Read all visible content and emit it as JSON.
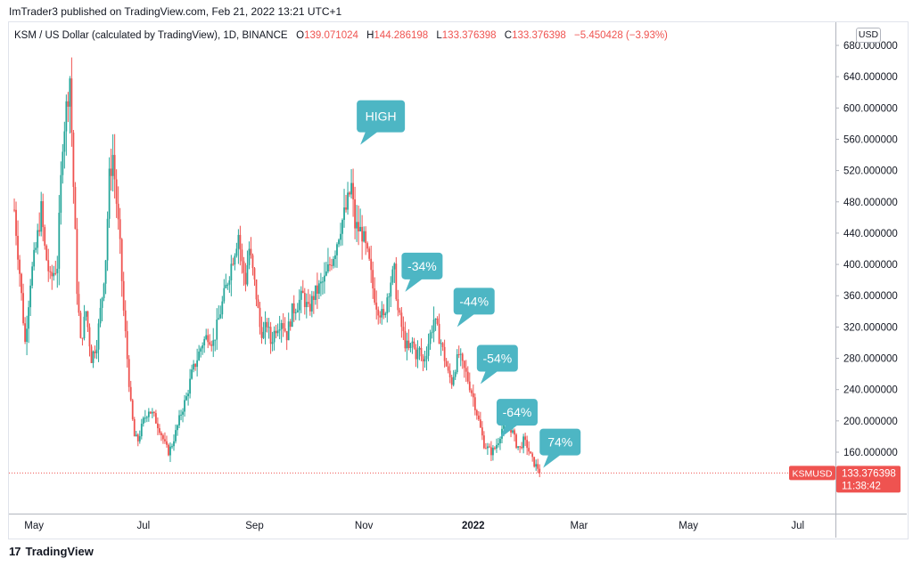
{
  "header": {
    "published_line": "ImTrader3 published on TradingView.com, Feb 21, 2022 13:21 UTC+1"
  },
  "legend": {
    "symbol_desc": "KSM / US Dollar (calculated by TradingView), 1D, BINANCE",
    "open_label": "O",
    "open": "139.071024",
    "high_label": "H",
    "high": "144.286198",
    "low_label": "L",
    "low": "133.376398",
    "close_label": "C",
    "close": "133.376398",
    "change": "−5.450428 (−3.93%)"
  },
  "currency_button": "USD",
  "price_tag": {
    "symbol": "KSMUSD",
    "price": "133.376398",
    "countdown": "11:38:42"
  },
  "footer": {
    "logo_text": "TradingView",
    "logo_mark": "17"
  },
  "colors": {
    "up": "#26a69a",
    "down": "#ef5350",
    "callout": "#4db6c4",
    "axis_text": "#131722"
  },
  "chart_data": {
    "type": "candlestick",
    "ylim": [
      90,
      700
    ],
    "y_ticks": [
      160,
      200,
      240,
      280,
      320,
      360,
      400,
      440,
      480,
      520,
      560,
      600,
      640,
      680
    ],
    "y_tick_labels": [
      "160.000000",
      "200.000000",
      "240.000000",
      "280.000000",
      "320.000000",
      "360.000000",
      "400.000000",
      "440.000000",
      "480.000000",
      "520.000000",
      "560.000000",
      "600.000000",
      "640.000000",
      "680.000000"
    ],
    "x_labels": [
      {
        "label": "May",
        "day": 11
      },
      {
        "label": "Jul",
        "day": 72
      },
      {
        "label": "Sep",
        "day": 134
      },
      {
        "label": "Nov",
        "day": 195
      },
      {
        "label": "2022",
        "day": 256
      },
      {
        "label": "Mar",
        "day": 315
      },
      {
        "label": "May",
        "day": 376
      },
      {
        "label": "Jul",
        "day": 437
      }
    ],
    "x_range_days": [
      -3,
      458
    ],
    "last_price": 133.376398,
    "price_path": [
      [
        0,
        470
      ],
      [
        3,
        390
      ],
      [
        6,
        300
      ],
      [
        9,
        380
      ],
      [
        12,
        420
      ],
      [
        15,
        470
      ],
      [
        17,
        420
      ],
      [
        20,
        380
      ],
      [
        24,
        400
      ],
      [
        27,
        560
      ],
      [
        29,
        600
      ],
      [
        31,
        640
      ],
      [
        33,
        500
      ],
      [
        35,
        370
      ],
      [
        37,
        300
      ],
      [
        40,
        340
      ],
      [
        43,
        280
      ],
      [
        46,
        300
      ],
      [
        49,
        360
      ],
      [
        51,
        410
      ],
      [
        53,
        510
      ],
      [
        55,
        540
      ],
      [
        57,
        480
      ],
      [
        59,
        420
      ],
      [
        61,
        340
      ],
      [
        63,
        280
      ],
      [
        65,
        220
      ],
      [
        67,
        180
      ],
      [
        69,
        175
      ],
      [
        72,
        200
      ],
      [
        75,
        215
      ],
      [
        78,
        205
      ],
      [
        81,
        190
      ],
      [
        84,
        170
      ],
      [
        86,
        160
      ],
      [
        88,
        170
      ],
      [
        90,
        185
      ],
      [
        93,
        210
      ],
      [
        96,
        230
      ],
      [
        99,
        260
      ],
      [
        102,
        280
      ],
      [
        105,
        300
      ],
      [
        108,
        310
      ],
      [
        111,
        300
      ],
      [
        114,
        330
      ],
      [
        117,
        360
      ],
      [
        120,
        390
      ],
      [
        123,
        420
      ],
      [
        125,
        440
      ],
      [
        127,
        400
      ],
      [
        129,
        380
      ],
      [
        131,
        420
      ],
      [
        133,
        390
      ],
      [
        135,
        360
      ],
      [
        137,
        320
      ],
      [
        139,
        310
      ],
      [
        141,
        325
      ],
      [
        143,
        300
      ],
      [
        146,
        320
      ],
      [
        149,
        330
      ],
      [
        152,
        310
      ],
      [
        155,
        340
      ],
      [
        158,
        350
      ],
      [
        161,
        360
      ],
      [
        164,
        340
      ],
      [
        167,
        360
      ],
      [
        170,
        370
      ],
      [
        173,
        380
      ],
      [
        176,
        400
      ],
      [
        179,
        420
      ],
      [
        182,
        450
      ],
      [
        185,
        470
      ],
      [
        188,
        500
      ],
      [
        190,
        450
      ],
      [
        192,
        445
      ],
      [
        194,
        440
      ],
      [
        196,
        420
      ],
      [
        198,
        400
      ],
      [
        200,
        370
      ],
      [
        202,
        350
      ],
      [
        204,
        340
      ],
      [
        206,
        330
      ],
      [
        208,
        360
      ],
      [
        210,
        380
      ],
      [
        212,
        390
      ],
      [
        214,
        340
      ],
      [
        216,
        320
      ],
      [
        218,
        300
      ],
      [
        220,
        290
      ],
      [
        222,
        300
      ],
      [
        224,
        285
      ],
      [
        226,
        290
      ],
      [
        228,
        275
      ],
      [
        230,
        290
      ],
      [
        232,
        310
      ],
      [
        234,
        330
      ],
      [
        236,
        315
      ],
      [
        238,
        300
      ],
      [
        240,
        280
      ],
      [
        242,
        260
      ],
      [
        244,
        250
      ],
      [
        246,
        270
      ],
      [
        248,
        285
      ],
      [
        250,
        270
      ],
      [
        252,
        260
      ],
      [
        254,
        245
      ],
      [
        256,
        230
      ],
      [
        258,
        210
      ],
      [
        260,
        190
      ],
      [
        262,
        170
      ],
      [
        264,
        165
      ],
      [
        266,
        160
      ],
      [
        268,
        165
      ],
      [
        270,
        175
      ],
      [
        272,
        190
      ],
      [
        274,
        205
      ],
      [
        276,
        195
      ],
      [
        278,
        185
      ],
      [
        280,
        170
      ],
      [
        282,
        165
      ],
      [
        284,
        175
      ],
      [
        286,
        168
      ],
      [
        288,
        155
      ],
      [
        290,
        145
      ],
      [
        292,
        140
      ],
      [
        293,
        133
      ]
    ],
    "annotations": [
      {
        "text": "HIGH",
        "day": 193,
        "price": 553
      },
      {
        "text": "-34%",
        "day": 218,
        "price": 365
      },
      {
        "text": "-44%",
        "day": 247,
        "price": 320
      },
      {
        "text": "-54%",
        "day": 260,
        "price": 247
      },
      {
        "text": "-64%",
        "day": 271,
        "price": 178
      },
      {
        "text": "74%",
        "day": 295,
        "price": 140
      }
    ]
  }
}
